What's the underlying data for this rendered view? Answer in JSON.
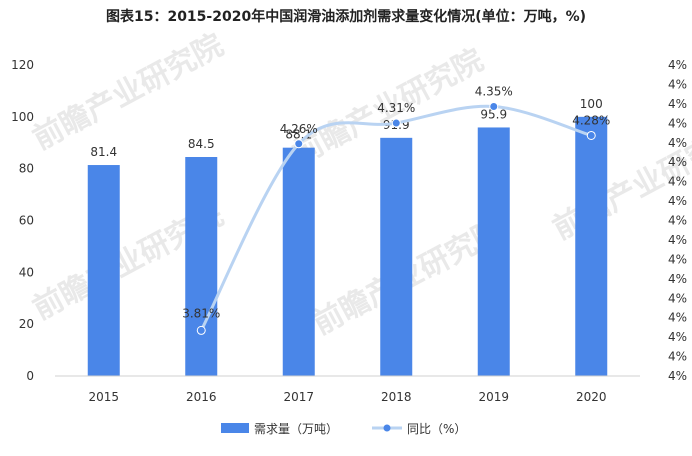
{
  "title": "图表15：2015-2020年中国润滑油添加剂需求量变化情况(单位：万吨，%)",
  "watermark": "前瞻产业研究院",
  "colors": {
    "bar": "#4a86e8",
    "line": "#b9d3f2",
    "marker": "#4a86e8"
  },
  "chart_data": {
    "type": "bar",
    "categories": [
      "2015",
      "2016",
      "2017",
      "2018",
      "2019",
      "2020"
    ],
    "series": [
      {
        "name": "需求量（万吨）",
        "type": "bar",
        "axis": "left",
        "values": [
          81.4,
          84.5,
          88.1,
          91.9,
          95.9,
          100
        ],
        "labels": [
          "81.4",
          "84.5",
          "88.1",
          "91.9",
          "95.9",
          "100"
        ]
      },
      {
        "name": "同比（%）",
        "type": "line",
        "axis": "right",
        "values": [
          null,
          3.81,
          4.26,
          4.31,
          4.35,
          4.28
        ],
        "labels": [
          "",
          "3.81%",
          "4.26%",
          "4.31%",
          "4.35%",
          "4.28%"
        ]
      }
    ],
    "y_left": {
      "ylim": [
        0,
        120
      ],
      "ticks": [
        "0",
        "20",
        "40",
        "60",
        "80",
        "100",
        "120"
      ]
    },
    "y_right": {
      "ylim": [
        3.7,
        4.45
      ],
      "ticks": [
        "4%",
        "4%",
        "4%",
        "4%",
        "4%",
        "4%",
        "4%",
        "4%",
        "4%",
        "4%",
        "4%",
        "4%",
        "4%",
        "4%",
        "4%",
        "4%",
        "4%"
      ]
    },
    "grid": false,
    "legend": "bottom"
  }
}
